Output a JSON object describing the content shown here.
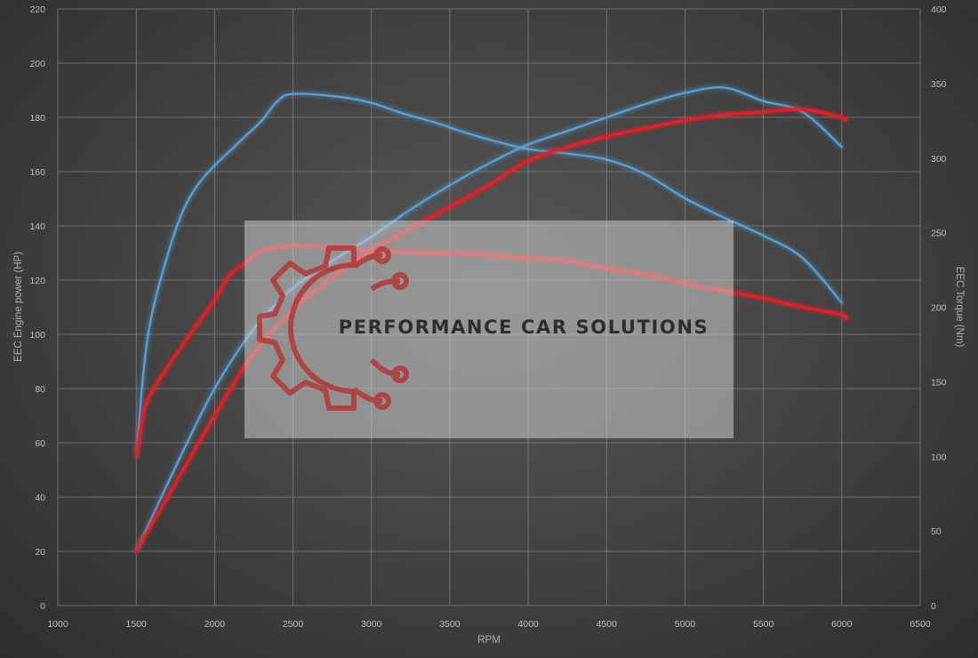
{
  "chart_data": {
    "type": "line",
    "xlabel": "RPM",
    "ylabel_left": "EEC Engine power (HP)",
    "ylabel_right": "EEC Torque (Nm)",
    "xlim": [
      1000,
      6500
    ],
    "ylim_left": [
      0,
      220
    ],
    "ylim_right": [
      0,
      400
    ],
    "xticks": [
      1000,
      1500,
      2000,
      2500,
      3000,
      3500,
      4000,
      4500,
      5000,
      5500,
      6000,
      6500
    ],
    "yticks_left": [
      0,
      20,
      40,
      60,
      80,
      100,
      120,
      140,
      160,
      180,
      200,
      220
    ],
    "yticks_right": [
      0,
      50,
      100,
      150,
      200,
      250,
      300,
      350,
      400
    ],
    "grid": true,
    "series": [
      {
        "axis": "left",
        "color": "#5aa7e0",
        "x": [
          1500,
          1750,
          2000,
          2250,
          2500,
          2750,
          3000,
          3250,
          3500,
          3750,
          4000,
          4250,
          4500,
          4750,
          5000,
          5250,
          5500,
          5750,
          6000
        ],
        "y": [
          20,
          51,
          80,
          102,
          117,
          127,
          136,
          146,
          155,
          163,
          170,
          175,
          180,
          185,
          189,
          191,
          186,
          182,
          169
        ]
      },
      {
        "axis": "right",
        "color": "#5aa7e0",
        "x": [
          1500,
          1550,
          1600,
          1700,
          1800,
          1900,
          2000,
          2100,
          2200,
          2300,
          2400,
          2500,
          2800,
          3000,
          3200,
          3400,
          3600,
          3800,
          4000,
          4250,
          4500,
          4750,
          5000,
          5250,
          5500,
          5750,
          6000
        ],
        "y": [
          100,
          160,
          195,
          235,
          265,
          283,
          295,
          305,
          315,
          325,
          338,
          343,
          341,
          337,
          330,
          324,
          317,
          311,
          306,
          303,
          299,
          289,
          273,
          260,
          248,
          233,
          203
        ]
      },
      {
        "axis": "left",
        "color": "#e0212c",
        "x": [
          1500,
          1750,
          2000,
          2250,
          2500,
          2750,
          3000,
          3250,
          3500,
          3750,
          4000,
          4250,
          4500,
          4750,
          5000,
          5250,
          5500,
          5750,
          6000,
          6025
        ],
        "y": [
          20,
          45,
          70,
          93,
          109,
          121,
          131,
          139,
          147,
          155,
          164,
          169,
          173,
          176,
          179,
          181,
          182,
          183,
          180,
          179
        ]
      },
      {
        "axis": "right",
        "color": "#e0212c",
        "x": [
          1500,
          1550,
          1600,
          1700,
          1800,
          1900,
          2000,
          2100,
          2200,
          2300,
          2400,
          2500,
          2800,
          3000,
          3250,
          3500,
          3750,
          4000,
          4250,
          4500,
          4750,
          5000,
          5250,
          5500,
          5750,
          6000,
          6025
        ],
        "y": [
          100,
          130,
          143,
          160,
          175,
          190,
          205,
          222,
          230,
          238,
          240,
          241,
          240,
          238,
          237,
          236,
          235,
          233,
          231,
          226,
          222,
          216,
          211,
          206,
          200,
          195,
          192
        ]
      }
    ]
  },
  "watermark": {
    "text": "PERFORMANCE CAR SOLUTIONS",
    "logo": "gear-circuit-icon",
    "logo_color": "#b2383a"
  }
}
